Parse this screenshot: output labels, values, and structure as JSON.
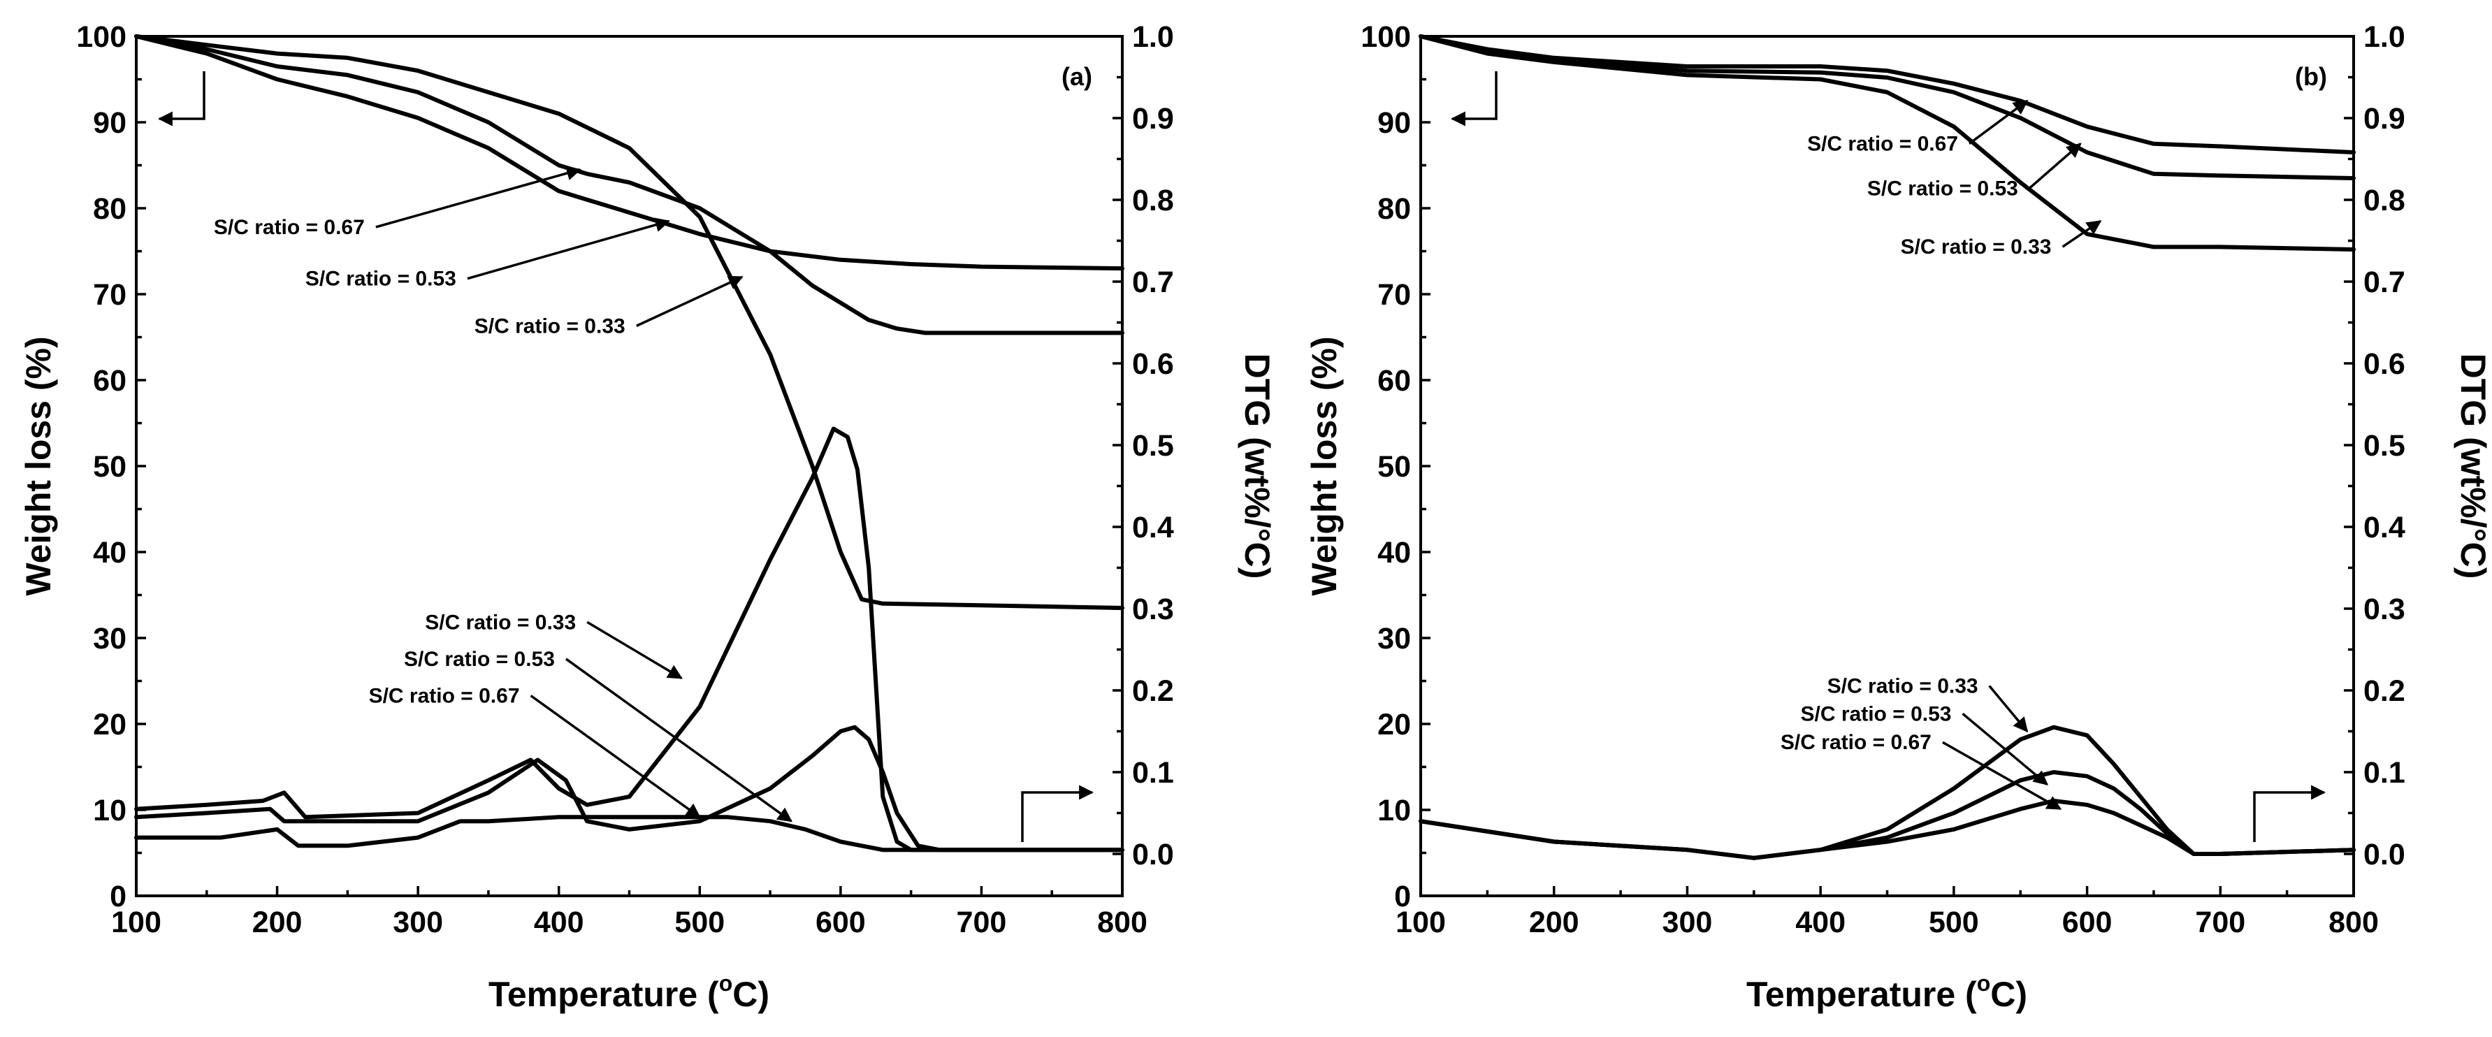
{
  "chart_data": [
    {
      "type": "line",
      "panel_label": "(a)",
      "xlabel_main": "Temperature (",
      "xlabel_sup": "o",
      "xlabel_end": "C)",
      "ylabel_left": "Weight loss (%)",
      "ylabel_right": "DTG (wt%/°C)",
      "xlim": [
        100,
        800
      ],
      "ylim_left": [
        0,
        100
      ],
      "ylim_right": [
        0,
        1.0
      ],
      "x_ticks": [
        "100",
        "200",
        "300",
        "400",
        "500",
        "600",
        "700",
        "800"
      ],
      "y_left_ticks": [
        "0",
        "10",
        "20",
        "30",
        "40",
        "50",
        "60",
        "70",
        "80",
        "90",
        "100"
      ],
      "y_right_ticks": [
        "0.0",
        "0.1",
        "0.2",
        "0.3",
        "0.4",
        "0.5",
        "0.6",
        "0.7",
        "0.8",
        "0.9",
        "1.0"
      ],
      "tga_series": [
        {
          "name": "S/C ratio = 0.67",
          "x": [
            100,
            150,
            200,
            250,
            300,
            350,
            400,
            450,
            500,
            550,
            580,
            600,
            615,
            630,
            700,
            800
          ],
          "y": [
            100,
            99,
            98,
            97.5,
            96,
            93.5,
            91,
            87,
            79,
            63,
            50,
            40,
            34.5,
            34,
            33.8,
            33.5
          ]
        },
        {
          "name": "S/C ratio = 0.53",
          "x": [
            100,
            150,
            200,
            250,
            300,
            350,
            400,
            420,
            450,
            500,
            550,
            580,
            600,
            620,
            640,
            660,
            700,
            800
          ],
          "y": [
            100,
            98.5,
            96.5,
            95.5,
            93.5,
            90,
            85,
            84,
            83,
            80,
            75,
            71,
            69,
            67,
            66,
            65.5,
            65.5,
            65.5
          ]
        },
        {
          "name": "S/C ratio = 0.33",
          "x": [
            100,
            150,
            200,
            250,
            300,
            350,
            400,
            420,
            450,
            500,
            550,
            600,
            650,
            700,
            800
          ],
          "y": [
            100,
            98,
            95,
            93,
            90.5,
            87,
            82,
            81,
            79.5,
            77,
            75,
            74,
            73.5,
            73.2,
            73
          ]
        }
      ],
      "dtg_series": [
        {
          "name": "S/C ratio = 0.33",
          "x": [
            100,
            150,
            190,
            205,
            220,
            300,
            350,
            380,
            400,
            420,
            450,
            500,
            550,
            580,
            595,
            605,
            612,
            620,
            630,
            640,
            650,
            700,
            800
          ],
          "y": [
            0.055,
            0.06,
            0.065,
            0.075,
            0.045,
            0.05,
            0.09,
            0.115,
            0.08,
            0.06,
            0.07,
            0.18,
            0.36,
            0.46,
            0.52,
            0.51,
            0.47,
            0.35,
            0.07,
            0.015,
            0.005,
            0.005,
            0.005
          ]
        },
        {
          "name": "S/C ratio = 0.53",
          "x": [
            100,
            150,
            195,
            205,
            220,
            300,
            350,
            385,
            405,
            420,
            450,
            500,
            550,
            580,
            600,
            610,
            620,
            630,
            640,
            655,
            670,
            700,
            800
          ],
          "y": [
            0.045,
            0.05,
            0.055,
            0.04,
            0.04,
            0.04,
            0.075,
            0.115,
            0.09,
            0.04,
            0.03,
            0.04,
            0.08,
            0.12,
            0.15,
            0.155,
            0.14,
            0.1,
            0.05,
            0.01,
            0.005,
            0.005,
            0.005
          ]
        },
        {
          "name": "S/C ratio = 0.67",
          "x": [
            100,
            160,
            200,
            215,
            250,
            300,
            330,
            350,
            400,
            450,
            500,
            520,
            550,
            575,
            600,
            630,
            650,
            700,
            800
          ],
          "y": [
            0.02,
            0.02,
            0.03,
            0.01,
            0.01,
            0.02,
            0.04,
            0.04,
            0.045,
            0.045,
            0.045,
            0.045,
            0.04,
            0.03,
            0.015,
            0.005,
            0.005,
            0.005,
            0.005
          ]
        }
      ],
      "tga_annotations": [
        {
          "text": "S/C ratio = 0.67",
          "arrow_to": [
            415,
            84.5
          ],
          "label_at": [
            155,
            77
          ]
        },
        {
          "text": "S/C ratio = 0.53",
          "arrow_to": [
            478,
            78.5
          ],
          "label_at": [
            220,
            71
          ]
        },
        {
          "text": "S/C ratio = 0.33",
          "arrow_to": [
            530,
            72
          ],
          "label_at": [
            340,
            65.5
          ]
        }
      ],
      "dtg_annotations": [
        {
          "text": "S/C ratio = 0.33",
          "arrow_to": [
            487,
            0.215
          ],
          "label_at": [
            305,
            0.275
          ]
        },
        {
          "text": "S/C ratio = 0.53",
          "arrow_to": [
            565,
            0.04
          ],
          "label_at": [
            290,
            0.23
          ]
        },
        {
          "text": "S/C ratio = 0.67",
          "arrow_to": [
            500,
            0.045
          ],
          "label_at": [
            265,
            0.185
          ]
        }
      ],
      "legend_arrows": [
        "left-axis",
        "right-axis"
      ]
    },
    {
      "type": "line",
      "panel_label": "(b)",
      "xlabel_main": "Temperature (",
      "xlabel_sup": "o",
      "xlabel_end": "C)",
      "ylabel_left": "Weight loss (%)",
      "ylabel_right": "DTG (wt%/°C)",
      "xlim": [
        100,
        800
      ],
      "ylim_left": [
        0,
        100
      ],
      "ylim_right": [
        0,
        1.0
      ],
      "x_ticks": [
        "100",
        "200",
        "300",
        "400",
        "500",
        "600",
        "700",
        "800"
      ],
      "y_left_ticks": [
        "0",
        "10",
        "20",
        "30",
        "40",
        "50",
        "60",
        "70",
        "80",
        "90",
        "100"
      ],
      "y_right_ticks": [
        "0.0",
        "0.1",
        "0.2",
        "0.3",
        "0.4",
        "0.5",
        "0.6",
        "0.7",
        "0.8",
        "0.9",
        "1.0"
      ],
      "tga_series": [
        {
          "name": "S/C ratio = 0.67",
          "x": [
            100,
            150,
            200,
            300,
            400,
            450,
            500,
            550,
            600,
            650,
            700,
            800
          ],
          "y": [
            100,
            98.5,
            97.5,
            96.5,
            96.5,
            96,
            94.5,
            92.5,
            89.5,
            87.5,
            87.2,
            86.5
          ]
        },
        {
          "name": "S/C ratio = 0.53",
          "x": [
            100,
            150,
            200,
            300,
            400,
            450,
            500,
            550,
            600,
            650,
            700,
            800
          ],
          "y": [
            100,
            98.3,
            97.2,
            96,
            95.8,
            95.2,
            93.5,
            90.5,
            86.5,
            84,
            83.8,
            83.5
          ]
        },
        {
          "name": "S/C ratio = 0.33",
          "x": [
            100,
            150,
            200,
            300,
            400,
            450,
            500,
            550,
            600,
            650,
            700,
            800
          ],
          "y": [
            100,
            98,
            97,
            95.5,
            95,
            93.5,
            89.5,
            83,
            77,
            75.5,
            75.5,
            75.2
          ]
        }
      ],
      "dtg_series": [
        {
          "name": "S/C ratio = 0.33",
          "x": [
            100,
            200,
            300,
            350,
            400,
            450,
            500,
            550,
            575,
            600,
            620,
            640,
            660,
            680,
            700,
            800
          ],
          "y": [
            0.04,
            0.015,
            0.005,
            -0.005,
            0.005,
            0.03,
            0.08,
            0.14,
            0.155,
            0.145,
            0.11,
            0.07,
            0.03,
            0.0,
            0.0,
            0.005
          ]
        },
        {
          "name": "S/C ratio = 0.53",
          "x": [
            100,
            200,
            300,
            350,
            400,
            450,
            500,
            550,
            575,
            600,
            620,
            640,
            660,
            680,
            700,
            800
          ],
          "y": [
            0.04,
            0.015,
            0.005,
            -0.005,
            0.005,
            0.02,
            0.05,
            0.09,
            0.1,
            0.095,
            0.08,
            0.055,
            0.025,
            0.0,
            0.0,
            0.005
          ]
        },
        {
          "name": "S/C ratio = 0.67",
          "x": [
            100,
            200,
            300,
            350,
            400,
            450,
            500,
            550,
            575,
            600,
            620,
            640,
            660,
            680,
            700,
            800
          ],
          "y": [
            0.04,
            0.015,
            0.005,
            -0.005,
            0.005,
            0.015,
            0.03,
            0.055,
            0.065,
            0.06,
            0.05,
            0.035,
            0.02,
            0.0,
            0.0,
            0.005
          ]
        }
      ],
      "tga_annotations": [
        {
          "text": "S/C ratio = 0.67",
          "arrow_to": [
            555,
            92.5
          ],
          "label_at": [
            390,
            86.7
          ]
        },
        {
          "text": "S/C ratio = 0.53",
          "arrow_to": [
            595,
            87.5
          ],
          "label_at": [
            435,
            81.5
          ]
        },
        {
          "text": "S/C ratio = 0.33",
          "arrow_to": [
            610,
            78.5
          ],
          "label_at": [
            460,
            74.7
          ]
        }
      ],
      "dtg_annotations": [
        {
          "text": "S/C ratio = 0.33",
          "arrow_to": [
            555,
            0.15
          ],
          "label_at": [
            405,
            0.197
          ]
        },
        {
          "text": "S/C ratio = 0.53",
          "arrow_to": [
            570,
            0.085
          ],
          "label_at": [
            385,
            0.163
          ]
        },
        {
          "text": "S/C ratio = 0.67",
          "arrow_to": [
            580,
            0.055
          ],
          "label_at": [
            370,
            0.128
          ]
        }
      ],
      "legend_arrows": [
        "left-axis",
        "right-axis"
      ]
    }
  ]
}
